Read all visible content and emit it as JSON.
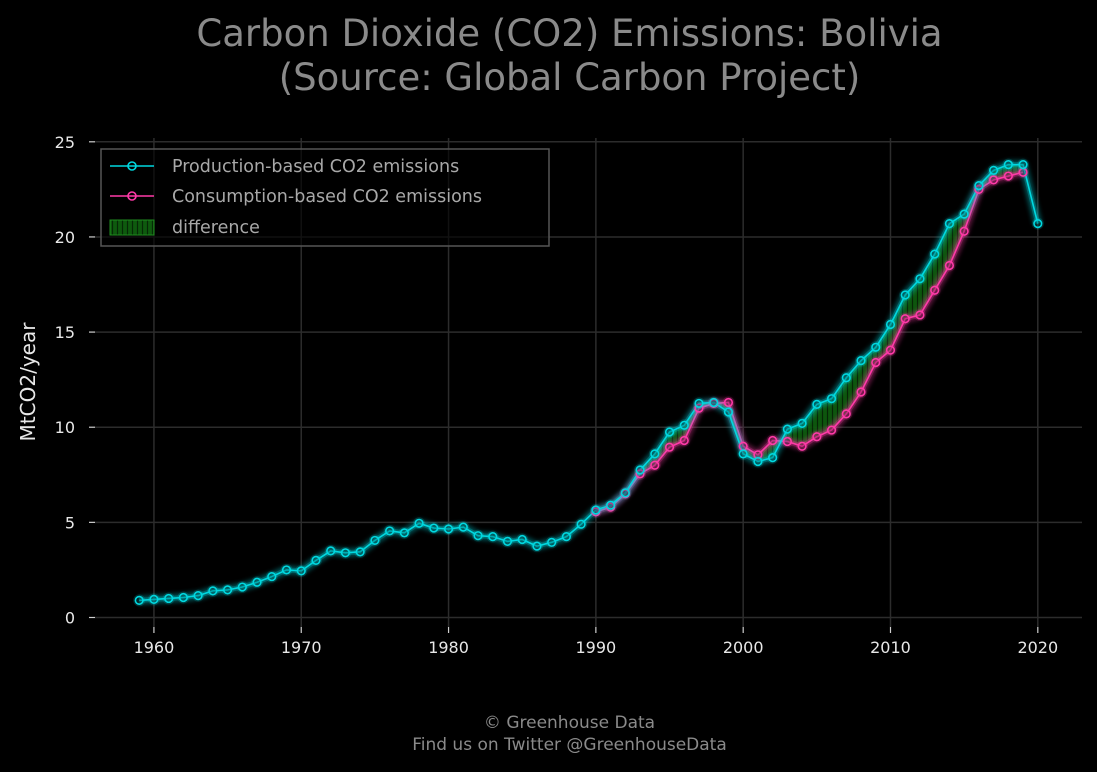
{
  "chart_data": {
    "type": "line",
    "title": [
      "Carbon Dioxide (CO2) Emissions: Bolivia",
      "(Source: Global Carbon Project)"
    ],
    "ylabel": "MtCO2/year",
    "xlabel": "",
    "xlim": [
      1956,
      2023
    ],
    "ylim": [
      -0.5,
      25.2
    ],
    "xticks": [
      1960,
      1970,
      1980,
      1990,
      2000,
      2010,
      2020
    ],
    "yticks": [
      0,
      5,
      10,
      15,
      20,
      25
    ],
    "grid": true,
    "legend_position": "top-left",
    "x": [
      1959,
      1960,
      1961,
      1962,
      1963,
      1964,
      1965,
      1966,
      1967,
      1968,
      1969,
      1970,
      1971,
      1972,
      1973,
      1974,
      1975,
      1976,
      1977,
      1978,
      1979,
      1980,
      1981,
      1982,
      1983,
      1984,
      1985,
      1986,
      1987,
      1988,
      1989,
      1990,
      1991,
      1992,
      1993,
      1994,
      1995,
      1996,
      1997,
      1998,
      1999,
      2000,
      2001,
      2002,
      2003,
      2004,
      2005,
      2006,
      2007,
      2008,
      2009,
      2010,
      2011,
      2012,
      2013,
      2014,
      2015,
      2016,
      2017,
      2018,
      2019,
      2020
    ],
    "series": [
      {
        "name": "Production-based CO2 emissions",
        "color": "#00d8e0",
        "values": [
          0.9,
          0.95,
          1.0,
          1.05,
          1.15,
          1.4,
          1.45,
          1.6,
          1.85,
          2.15,
          2.5,
          2.45,
          3.0,
          3.5,
          3.4,
          3.45,
          4.05,
          4.55,
          4.45,
          4.95,
          4.7,
          4.65,
          4.75,
          4.3,
          4.25,
          4.0,
          4.1,
          3.75,
          3.95,
          4.25,
          4.9,
          5.65,
          5.9,
          6.55,
          7.75,
          8.6,
          9.75,
          10.1,
          11.25,
          11.3,
          10.8,
          8.6,
          8.2,
          8.4,
          9.9,
          10.2,
          11.2,
          11.5,
          12.6,
          13.5,
          14.2,
          15.4,
          16.95,
          17.8,
          19.1,
          20.7,
          21.2,
          22.7,
          23.5,
          23.8,
          23.8,
          20.7
        ]
      },
      {
        "name": "Consumption-based CO2 emissions",
        "color": "#ff3aa8",
        "values": [
          null,
          null,
          null,
          null,
          null,
          null,
          null,
          null,
          null,
          null,
          null,
          null,
          null,
          null,
          null,
          null,
          null,
          null,
          null,
          null,
          null,
          null,
          null,
          null,
          null,
          null,
          null,
          null,
          null,
          null,
          null,
          5.55,
          5.8,
          6.5,
          7.55,
          8.0,
          8.95,
          9.3,
          11.0,
          11.25,
          11.3,
          9.0,
          8.55,
          9.3,
          9.25,
          9.0,
          9.5,
          9.85,
          10.7,
          11.85,
          13.4,
          14.05,
          15.7,
          15.9,
          17.2,
          18.5,
          20.3,
          22.5,
          23.0,
          23.2,
          23.4,
          null
        ]
      }
    ],
    "legend": [
      {
        "label": "Production-based CO2 emissions",
        "kind": "line",
        "color": "#00d8e0"
      },
      {
        "label": "Consumption-based CO2 emissions",
        "kind": "line",
        "color": "#ff3aa8"
      },
      {
        "label": "difference",
        "kind": "area",
        "color": "#1f8a1f"
      }
    ]
  },
  "footer": {
    "line1": "© Greenhouse Data",
    "line2": "Find us on Twitter @GreenhouseData"
  }
}
